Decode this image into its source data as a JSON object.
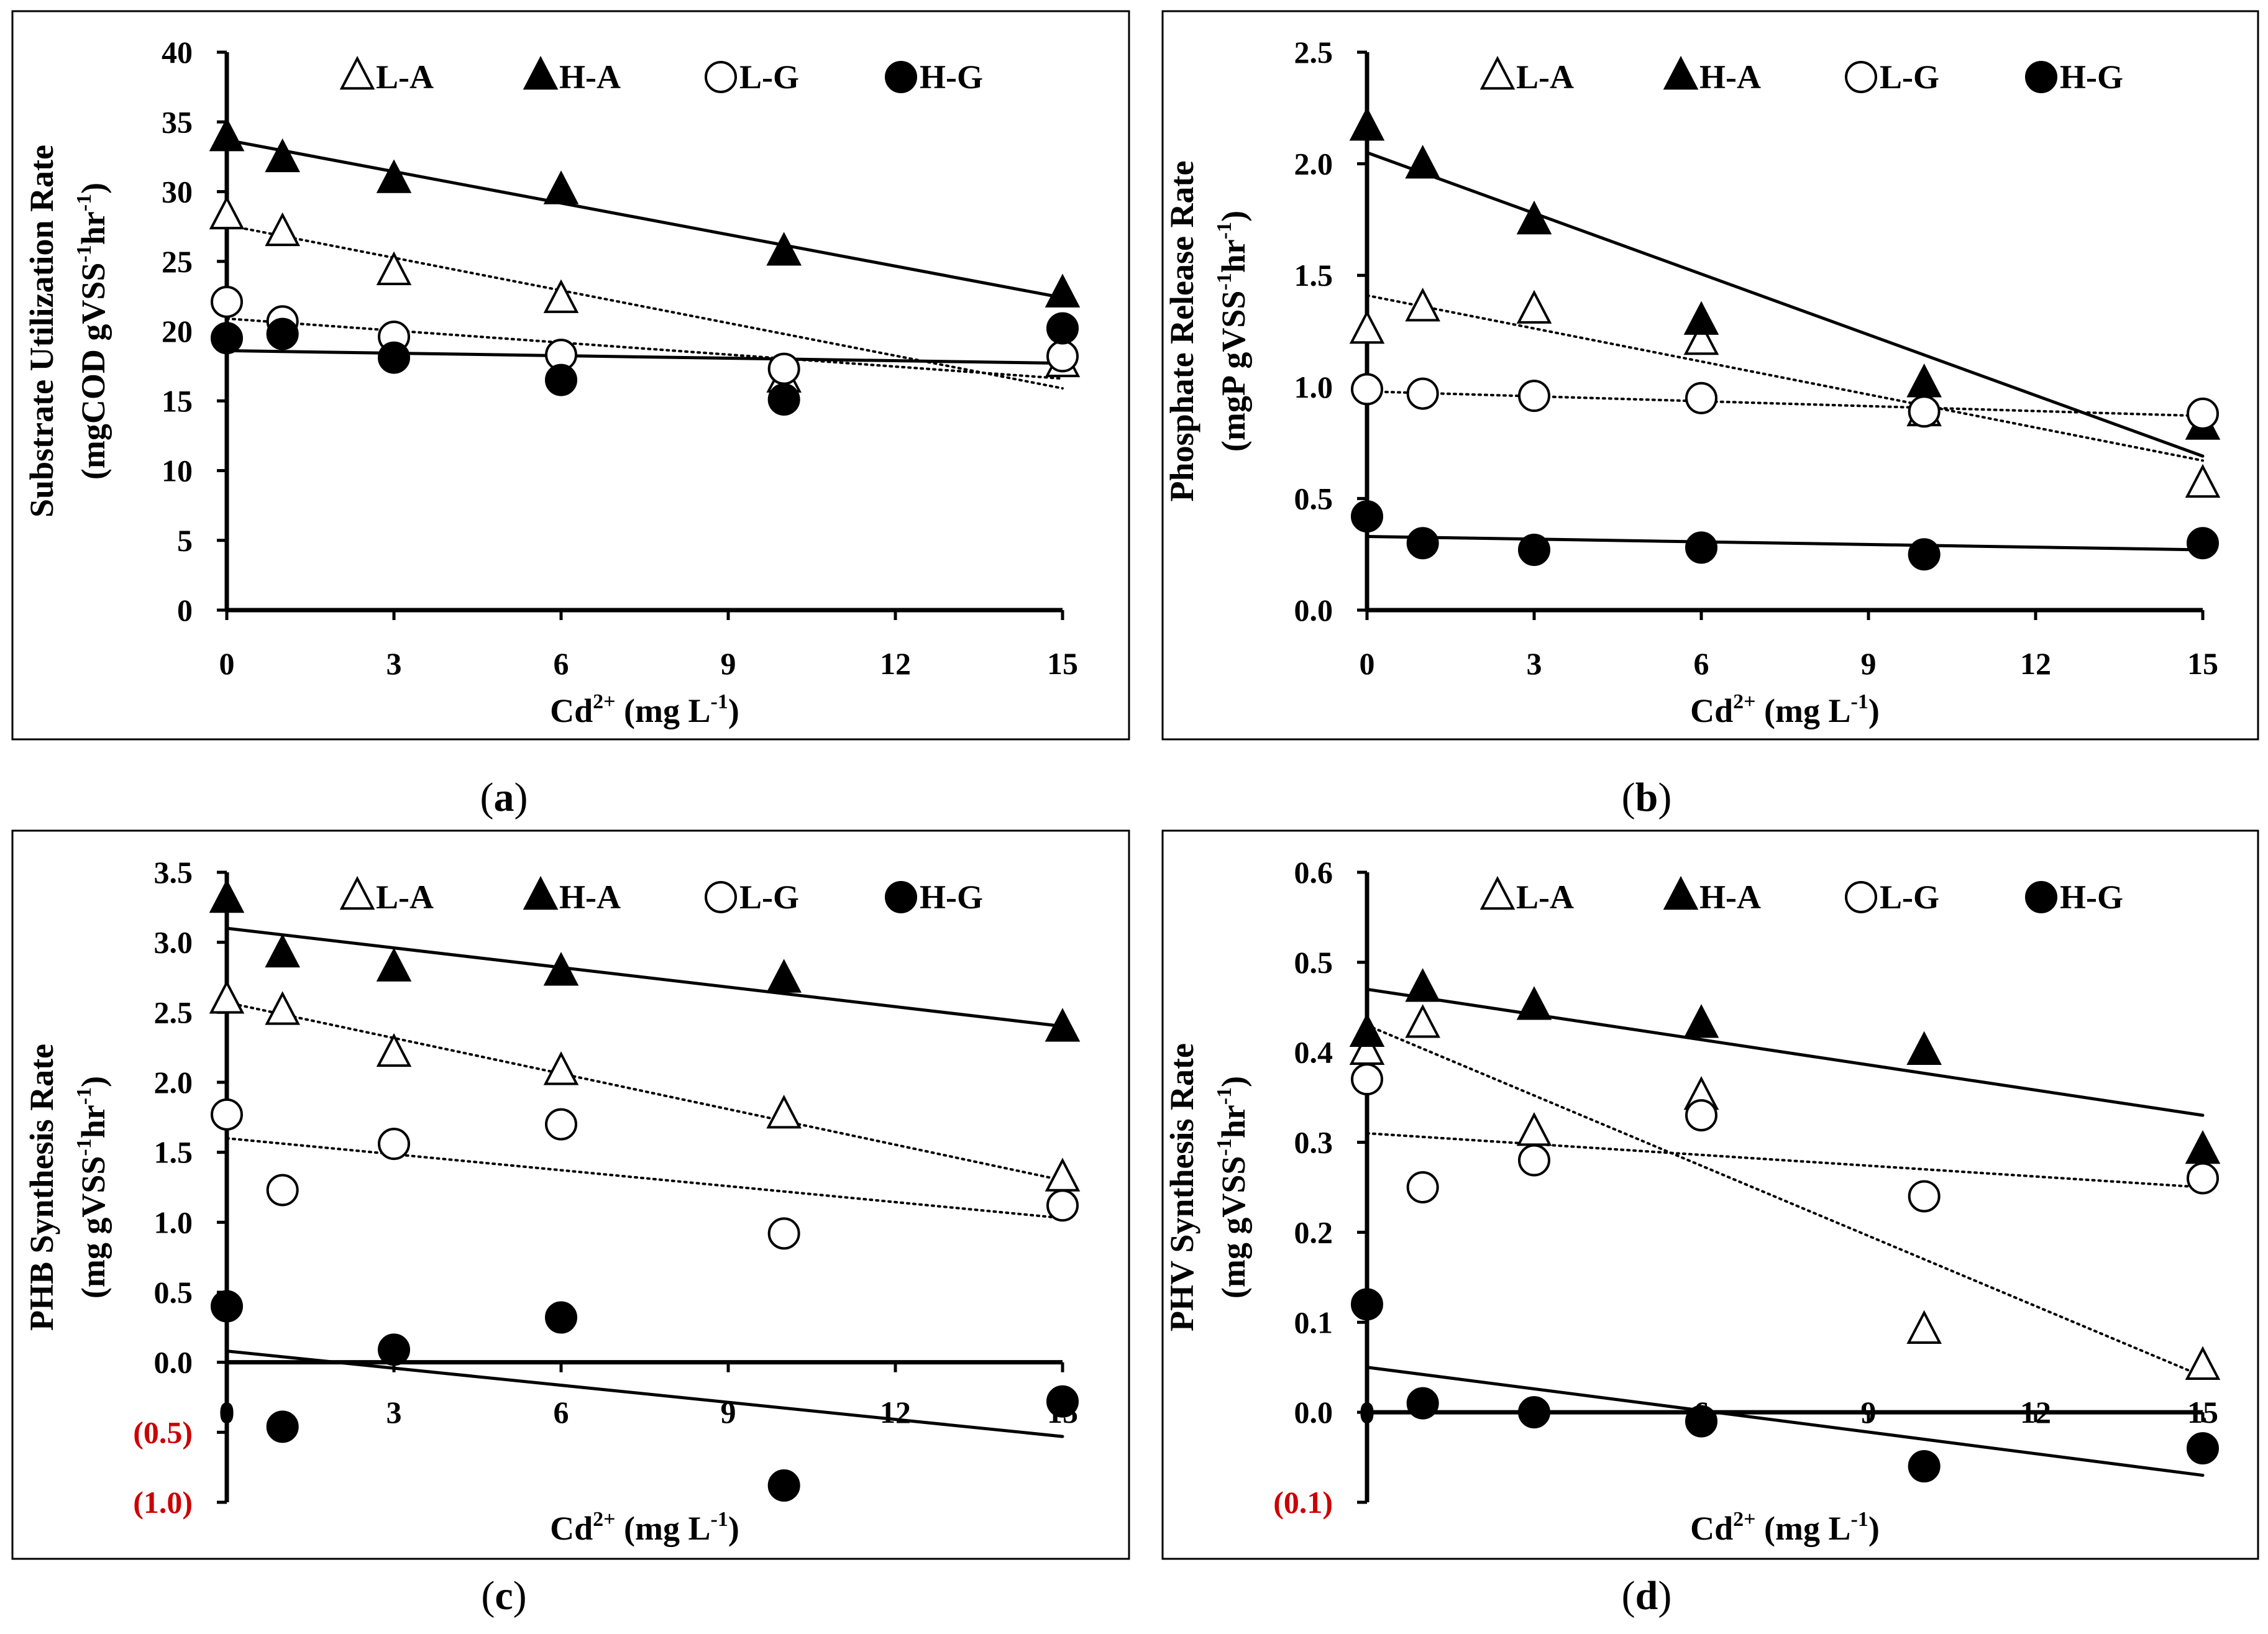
{
  "figure": {
    "panels": [
      {
        "caption": "(a)",
        "caption_letter": "a"
      },
      {
        "caption": "(b)",
        "caption_letter": "b"
      },
      {
        "caption": "(c)",
        "caption_letter": "c"
      },
      {
        "caption": "(d)",
        "caption_letter": "d"
      }
    ]
  },
  "colors": {
    "axis": "#000000",
    "negative_tick": "#cc0000",
    "frame": "#000000",
    "background": "#ffffff"
  },
  "chart_data": [
    {
      "panel": "a",
      "type": "scatter",
      "title": "",
      "xlabel": "Cd2+ (mg L-1)",
      "xlabel_parts": {
        "main": "Cd",
        "sup": "2+",
        "rest": " (mg L",
        "sup2": "-1",
        "close": ")"
      },
      "ylabel_line1": "Substrate Utilization Rate",
      "ylabel_line2": {
        "pre": "(mgCOD gVSS",
        "sup1": "-1",
        "mid": "hr",
        "sup2": "-1",
        "post": ")"
      },
      "xlim": [
        0,
        15
      ],
      "ylim": [
        0,
        40
      ],
      "x_ticks": [
        "0",
        "3",
        "6",
        "9",
        "12",
        "15"
      ],
      "x_tick_values": [
        0,
        3,
        6,
        9,
        12,
        15
      ],
      "y_ticks": [
        "0",
        "5",
        "10",
        "15",
        "20",
        "25",
        "30",
        "35",
        "40"
      ],
      "y_tick_values": [
        0,
        5,
        10,
        15,
        20,
        25,
        30,
        35,
        40
      ],
      "legend": [
        "L-A",
        "H-A",
        "L-G",
        "H-G"
      ],
      "legend_position": "top",
      "x": [
        0,
        1,
        3,
        6,
        10,
        15
      ],
      "series": [
        {
          "name": "L-A",
          "marker": "triangle-open",
          "values": [
            28.2,
            27.0,
            24.2,
            22.2,
            16.5,
            17.6
          ],
          "trend": [
            27.6,
            15.9
          ],
          "trend_style": "dotted"
        },
        {
          "name": "H-A",
          "marker": "triangle-filled",
          "values": [
            33.8,
            32.3,
            30.8,
            30.0,
            25.6,
            22.6
          ],
          "trend": [
            33.7,
            22.4
          ],
          "trend_style": "solid"
        },
        {
          "name": "L-G",
          "marker": "circle-open",
          "values": [
            22.1,
            20.7,
            19.6,
            18.3,
            17.3,
            18.2
          ],
          "trend": [
            20.9,
            16.6
          ],
          "trend_style": "dotted"
        },
        {
          "name": "H-G",
          "marker": "circle-filled",
          "values": [
            19.5,
            19.8,
            18.1,
            16.5,
            15.1,
            20.2
          ],
          "trend": [
            18.6,
            17.7
          ],
          "trend_style": "solid"
        }
      ]
    },
    {
      "panel": "b",
      "type": "scatter",
      "title": "",
      "xlabel": "Cd2+ (mg L-1)",
      "xlabel_parts": {
        "main": "Cd",
        "sup": "2+",
        "rest": " (mg L",
        "sup2": "-1",
        "close": ")"
      },
      "ylabel_line1": "Phosphate Release Rate",
      "ylabel_line2": {
        "pre": "(mgP gVSS",
        "sup1": "-1",
        "mid": "hr",
        "sup2": "-1",
        "post": ")"
      },
      "xlim": [
        0,
        15
      ],
      "ylim": [
        0,
        2.5
      ],
      "x_ticks": [
        "0",
        "3",
        "6",
        "9",
        "12",
        "15"
      ],
      "x_tick_values": [
        0,
        3,
        6,
        9,
        12,
        15
      ],
      "y_ticks": [
        "0.0",
        "0.5",
        "1.0",
        "1.5",
        "2.0",
        "2.5"
      ],
      "y_tick_values": [
        0,
        0.5,
        1.0,
        1.5,
        2.0,
        2.5
      ],
      "legend": [
        "L-A",
        "H-A",
        "L-G",
        "H-G"
      ],
      "legend_position": "top",
      "x": [
        0,
        1,
        3,
        6,
        10,
        15
      ],
      "series": [
        {
          "name": "L-A",
          "marker": "triangle-open",
          "values": [
            1.25,
            1.35,
            1.34,
            1.2,
            0.88,
            0.56
          ],
          "trend": [
            1.41,
            0.67
          ],
          "trend_style": "dotted"
        },
        {
          "name": "H-A",
          "marker": "triangle-filled",
          "values": [
            2.16,
            1.99,
            1.74,
            1.29,
            1.01,
            0.82
          ],
          "trend": [
            2.05,
            0.69
          ],
          "trend_style": "solid"
        },
        {
          "name": "L-G",
          "marker": "circle-open",
          "values": [
            0.99,
            0.97,
            0.96,
            0.95,
            0.89,
            0.88
          ],
          "trend": [
            0.98,
            0.87
          ],
          "trend_style": "dotted"
        },
        {
          "name": "H-G",
          "marker": "circle-filled",
          "values": [
            0.42,
            0.3,
            0.27,
            0.28,
            0.25,
            0.3
          ],
          "trend": [
            0.33,
            0.27
          ],
          "trend_style": "solid"
        }
      ]
    },
    {
      "panel": "c",
      "type": "scatter",
      "title": "",
      "xlabel": "Cd2+ (mg L-1)",
      "xlabel_parts": {
        "main": "Cd",
        "sup": "2+",
        "rest": " (mg L",
        "sup2": "-1",
        "close": ")"
      },
      "ylabel_line1": "PHB  Synthesis  Rate",
      "ylabel_line2": {
        "pre": "(mg gVSS",
        "sup1": "-1",
        "mid": "hr",
        "sup2": "-1",
        "post": ")"
      },
      "xlim": [
        0,
        15
      ],
      "ylim": [
        -1.0,
        3.5
      ],
      "x_ticks": [
        "0",
        "3",
        "6",
        "9",
        "12",
        "15"
      ],
      "x_tick_values": [
        0,
        3,
        6,
        9,
        12,
        15
      ],
      "y_ticks": [
        "(1.0)",
        "(0.5)",
        "0.0",
        "0.5",
        "1.0",
        "1.5",
        "2.0",
        "2.5",
        "3.0",
        "3.5"
      ],
      "y_tick_values": [
        -1.0,
        -0.5,
        0,
        0.5,
        1.0,
        1.5,
        2.0,
        2.5,
        3.0,
        3.5
      ],
      "legend": [
        "L-A",
        "H-A",
        "L-G",
        "H-G"
      ],
      "legend_position": "top",
      "x": [
        0,
        1,
        3,
        6,
        10,
        15
      ],
      "series": [
        {
          "name": "L-A",
          "marker": "triangle-open",
          "values": [
            2.58,
            2.5,
            2.2,
            2.07,
            1.76,
            1.31
          ],
          "trend": [
            2.57,
            1.3
          ],
          "trend_style": "dotted"
        },
        {
          "name": "H-A",
          "marker": "triangle-filled",
          "values": [
            3.3,
            2.91,
            2.81,
            2.78,
            2.73,
            2.38
          ],
          "trend": [
            3.1,
            2.4
          ],
          "trend_style": "solid"
        },
        {
          "name": "L-G",
          "marker": "circle-open",
          "values": [
            1.77,
            1.23,
            1.56,
            1.7,
            0.92,
            1.12
          ],
          "trend": [
            1.6,
            1.03
          ],
          "trend_style": "dotted"
        },
        {
          "name": "H-G",
          "marker": "circle-filled",
          "values": [
            0.4,
            -0.46,
            0.09,
            0.32,
            -0.88,
            -0.28
          ],
          "trend": [
            0.08,
            -0.53
          ],
          "trend_style": "solid"
        }
      ]
    },
    {
      "panel": "d",
      "type": "scatter",
      "title": "",
      "xlabel": "Cd2+ (mg L-1)",
      "xlabel_parts": {
        "main": "Cd",
        "sup": "2+",
        "rest": " (mg L",
        "sup2": "-1",
        "close": ")"
      },
      "ylabel_line1": "PHV  Synthesis  Rate",
      "ylabel_line2": {
        "pre": "(mg gVSS",
        "sup1": "-1",
        "mid": "hr",
        "sup2": "-1",
        "post": ")"
      },
      "xlim": [
        0,
        15
      ],
      "ylim": [
        -0.1,
        0.6
      ],
      "x_ticks": [
        "0",
        "3",
        "6",
        "9",
        "12",
        "15"
      ],
      "x_tick_values": [
        0,
        3,
        6,
        9,
        12,
        15
      ],
      "y_ticks": [
        "(0.1)",
        "0.0",
        "0.1",
        "0.2",
        "0.3",
        "0.4",
        "0.5",
        "0.6"
      ],
      "y_tick_values": [
        -0.1,
        0,
        0.1,
        0.2,
        0.3,
        0.4,
        0.5,
        0.6
      ],
      "legend": [
        "L-A",
        "H-A",
        "L-G",
        "H-G"
      ],
      "legend_position": "top",
      "x": [
        0,
        1,
        3,
        6,
        10,
        15
      ],
      "series": [
        {
          "name": "L-A",
          "marker": "triangle-open",
          "values": [
            0.4,
            0.43,
            0.31,
            0.35,
            0.09,
            0.05
          ],
          "trend": [
            0.43,
            0.04
          ],
          "trend_style": "dotted"
        },
        {
          "name": "H-A",
          "marker": "triangle-filled",
          "values": [
            0.42,
            0.47,
            0.45,
            0.43,
            0.4,
            0.29
          ],
          "trend": [
            0.47,
            0.33
          ],
          "trend_style": "solid"
        },
        {
          "name": "L-G",
          "marker": "circle-open",
          "values": [
            0.37,
            0.25,
            0.28,
            0.33,
            0.24,
            0.26
          ],
          "trend": [
            0.31,
            0.25
          ],
          "trend_style": "dotted"
        },
        {
          "name": "H-G",
          "marker": "circle-filled",
          "values": [
            0.12,
            0.01,
            0.0,
            -0.01,
            -0.06,
            -0.04
          ],
          "trend": [
            0.05,
            -0.07
          ],
          "trend_style": "solid"
        }
      ]
    }
  ]
}
